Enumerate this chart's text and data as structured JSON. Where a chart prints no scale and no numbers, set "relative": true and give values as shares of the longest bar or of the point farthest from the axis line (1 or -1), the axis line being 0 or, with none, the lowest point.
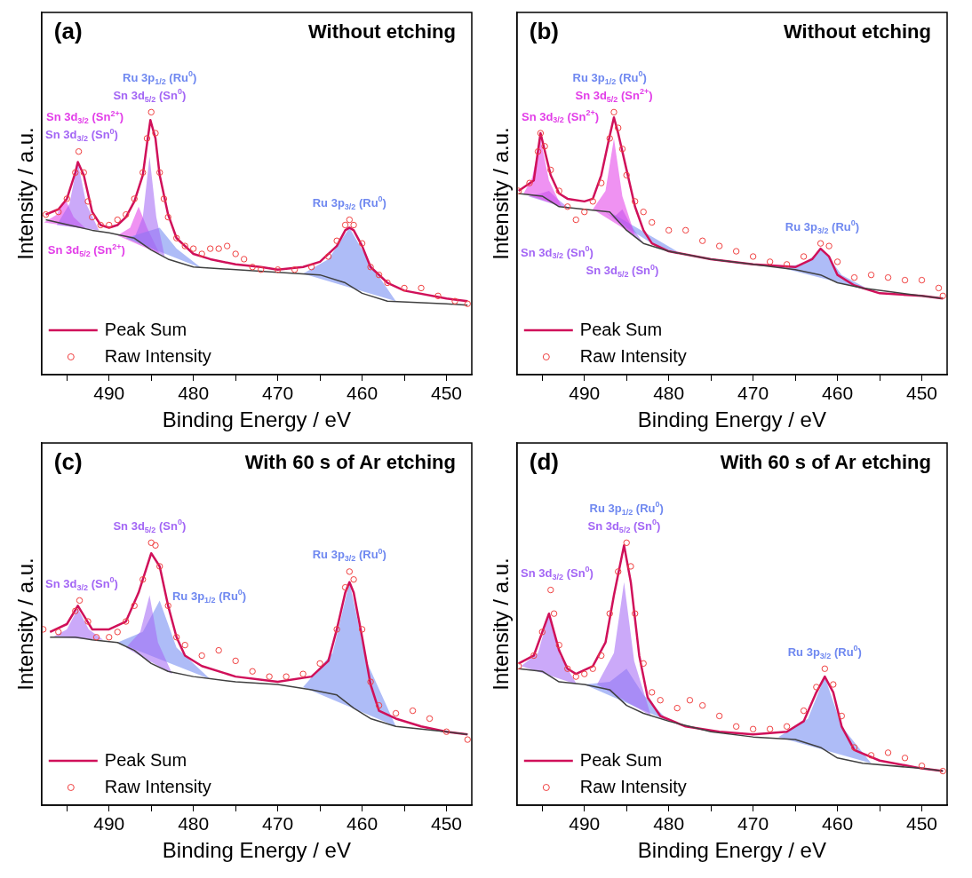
{
  "chart_data": [
    {
      "type": "line",
      "title": "Without etching",
      "xlabel": "Binding Energy / eV",
      "ylabel": "Intensity / a.u.",
      "relative": true,
      "legend": "bottom left",
      "grid": false,
      "xlim": [
        498,
        447
      ],
      "xticks": [
        {
          "value": 495,
          "label": null
        },
        490,
        {
          "value": 485,
          "label": null
        },
        480,
        {
          "value": 475,
          "label": null
        },
        470,
        {
          "value": 465,
          "label": null
        },
        460,
        {
          "value": 455,
          "label": null
        },
        450
      ],
      "annotations": [
        "(a)",
        "Sn 3d$_{5/2}$ (Sn$^{0}$)",
        "Sn 3d$_{3/2}$ (Sn$^{0}$)",
        "Ru 3p$_{1/2}$ (Ru$^{0}$)",
        "Ru 3p$_{3/2}$ (Ru$^{0}$)",
        "Sn 3d$_{3/2}$ (Sn$^{2+}$)",
        "Sn 3d$_{5/2}$ (Sn$^{2+}$)"
      ],
      "series": [
        {
          "type": "area",
          "color": "#a366f5",
          "x": [
            487,
            486,
            485.2,
            484.4,
            483.4
          ],
          "values": [
            0.52,
            0.6,
            0.83,
            0.6,
            0.45
          ]
        },
        {
          "type": "area",
          "color": "#a366f5",
          "x": [
            496.2,
            494.7,
            493.7,
            492.7,
            491.2
          ],
          "values": [
            0.57,
            0.65,
            0.81,
            0.65,
            0.55
          ]
        },
        {
          "type": "area",
          "color": "#6f88f0",
          "x": [
            488,
            486,
            484,
            482,
            479
          ],
          "values": [
            0.52,
            0.54,
            0.56,
            0.48,
            0.405
          ]
        },
        {
          "type": "area",
          "color": "#6f88f0",
          "x": [
            467,
            464,
            461.5,
            459,
            456
          ],
          "values": [
            0.385,
            0.44,
            0.56,
            0.42,
            0.28
          ]
        },
        {
          "type": "area",
          "color": "#e23ee8",
          "x": [
            497.7,
            496.2,
            495.2,
            494.2,
            492.7
          ],
          "values": [
            0.58,
            0.61,
            0.67,
            0.6,
            0.555
          ]
        },
        {
          "type": "area",
          "color": "#e23ee8",
          "x": [
            489,
            487.5,
            486.5,
            485.5,
            484
          ],
          "values": [
            0.53,
            0.56,
            0.64,
            0.56,
            0.46
          ]
        },
        {
          "color": "#404040",
          "x": [
            497.5,
            492,
            490,
            487,
            485,
            483,
            480,
            470,
            465,
            462,
            460,
            457,
            450,
            447.5
          ],
          "values": [
            0.59,
            0.55,
            0.54,
            0.52,
            0.475,
            0.44,
            0.41,
            0.39,
            0.38,
            0.35,
            0.31,
            0.28,
            0.27,
            0.265
          ]
        },
        {
          "name": "Peak Sum",
          "color": "#d0105a",
          "x": [
            497.5,
            496,
            495,
            494,
            493.7,
            493,
            492,
            491,
            490,
            489,
            488,
            487,
            486,
            485.5,
            485.1,
            484.5,
            484,
            483,
            482,
            480,
            478,
            475,
            472,
            470,
            467,
            465,
            463,
            462,
            461.5,
            461,
            460,
            459,
            457,
            455,
            450,
            447.5
          ],
          "values": [
            0.61,
            0.63,
            0.67,
            0.77,
            0.81,
            0.76,
            0.62,
            0.57,
            0.56,
            0.57,
            0.6,
            0.66,
            0.76,
            0.88,
            0.97,
            0.9,
            0.76,
            0.61,
            0.52,
            0.46,
            0.44,
            0.42,
            0.41,
            0.4,
            0.41,
            0.43,
            0.49,
            0.55,
            0.56,
            0.55,
            0.49,
            0.41,
            0.35,
            0.32,
            0.29,
            0.28
          ]
        },
        {
          "type": "scatter",
          "name": "Raw Intensity",
          "color": "#f04040",
          "marker": "circle",
          "x": [
            497.5,
            496,
            495,
            494,
            493.6,
            493,
            492.5,
            492,
            491,
            490,
            489,
            488,
            487,
            486,
            485.5,
            485,
            484.5,
            484,
            483.5,
            483,
            482,
            481,
            480,
            479,
            478,
            477,
            476,
            475,
            474,
            473,
            472,
            470,
            468,
            466,
            464,
            463,
            462,
            461.5,
            461,
            460,
            459,
            458,
            457,
            455,
            453,
            451,
            449,
            447.5
          ],
          "values": [
            0.61,
            0.62,
            0.67,
            0.77,
            0.85,
            0.77,
            0.66,
            0.6,
            0.57,
            0.57,
            0.59,
            0.61,
            0.67,
            0.77,
            0.9,
            1,
            0.92,
            0.77,
            0.67,
            0.6,
            0.52,
            0.49,
            0.48,
            0.46,
            0.48,
            0.48,
            0.49,
            0.46,
            0.44,
            0.41,
            0.4,
            0.4,
            0.4,
            0.41,
            0.45,
            0.51,
            0.57,
            0.59,
            0.57,
            0.5,
            0.41,
            0.38,
            0.35,
            0.33,
            0.33,
            0.3,
            0.28,
            0.27
          ]
        }
      ]
    },
    {
      "type": "line",
      "title": "Without etching",
      "xlabel": "Binding Energy / eV",
      "ylabel": "Intensity / a.u.",
      "relative": true,
      "legend": "bottom left",
      "grid": false,
      "xlim": [
        498,
        447
      ],
      "xticks": [
        {
          "value": 495,
          "label": null
        },
        490,
        {
          "value": 485,
          "label": null
        },
        480,
        {
          "value": 475,
          "label": null
        },
        470,
        {
          "value": 465,
          "label": null
        },
        460,
        {
          "value": 455,
          "label": null
        },
        450
      ],
      "annotations": [
        "(b)",
        "Sn 3d$_{3/2}$ (Sn$^{2+}$)",
        "Sn 3d$_{5/2}$ (Sn$^{2+}$)",
        "Ru 3p$_{1/2}$ (Ru$^{0}$)",
        "Ru 3p$_{3/2}$ (Ru$^{0}$)",
        "Sn 3d$_{3/2}$ (Sn$^{0}$)",
        "Sn 3d$_{5/2}$ (Sn$^{0}$)"
      ],
      "series": [
        {
          "type": "area",
          "color": "#e23ee8",
          "x": [
            497.2,
            496.2,
            495.2,
            494.2,
            492.7
          ],
          "values": [
            0.69,
            0.75,
            0.9,
            0.74,
            0.64
          ]
        },
        {
          "type": "area",
          "color": "#e23ee8",
          "x": [
            489,
            487.5,
            486.5,
            485.5,
            484
          ],
          "values": [
            0.63,
            0.7,
            0.9,
            0.68,
            0.53
          ]
        },
        {
          "type": "area",
          "color": "#6f88f0",
          "x": [
            487,
            485,
            483.5,
            481.5,
            478.5
          ],
          "values": [
            0.62,
            0.56,
            0.53,
            0.49,
            0.46
          ]
        },
        {
          "type": "area",
          "color": "#6f88f0",
          "x": [
            467,
            464,
            461.8,
            459.5,
            456
          ],
          "values": [
            0.41,
            0.42,
            0.48,
            0.38,
            0.32
          ]
        },
        {
          "type": "area",
          "color": "#a366f5",
          "x": [
            496.7,
            495.2,
            494.2,
            493.2,
            491.7
          ],
          "values": [
            0.68,
            0.69,
            0.7,
            0.67,
            0.63
          ]
        },
        {
          "type": "area",
          "color": "#a366f5",
          "x": [
            487.5,
            486.5,
            485.5,
            484.5,
            483
          ],
          "values": [
            0.62,
            0.6,
            0.63,
            0.57,
            0.5
          ]
        },
        {
          "color": "#404040",
          "x": [
            497.8,
            495,
            493,
            490,
            487,
            485,
            483,
            480,
            475,
            470,
            465,
            462,
            460,
            457,
            450,
            447.5
          ],
          "values": [
            0.69,
            0.68,
            0.64,
            0.63,
            0.62,
            0.55,
            0.5,
            0.47,
            0.44,
            0.42,
            0.4,
            0.38,
            0.35,
            0.33,
            0.3,
            0.29
          ]
        },
        {
          "name": "Peak Sum",
          "color": "#d0105a",
          "x": [
            497.8,
            496,
            495.2,
            494,
            493,
            492,
            490,
            489,
            488,
            487,
            486.5,
            486,
            485,
            484,
            483,
            482,
            480,
            475,
            470,
            465,
            463,
            462,
            461,
            460,
            458,
            455,
            450,
            447.5
          ],
          "values": [
            0.7,
            0.74,
            0.92,
            0.76,
            0.69,
            0.67,
            0.66,
            0.67,
            0.76,
            0.91,
            0.98,
            0.92,
            0.78,
            0.64,
            0.55,
            0.5,
            0.47,
            0.44,
            0.42,
            0.41,
            0.44,
            0.48,
            0.45,
            0.38,
            0.34,
            0.31,
            0.3,
            0.29
          ]
        },
        {
          "type": "scatter",
          "name": "Raw Intensity",
          "color": "#f04040",
          "marker": "circle",
          "x": [
            497.8,
            496.5,
            495.5,
            495.2,
            494.7,
            494,
            493,
            492,
            491,
            490,
            489,
            488,
            487,
            486.5,
            486,
            485.5,
            485,
            484,
            483,
            482,
            480,
            478,
            476,
            474,
            472,
            470,
            468,
            466,
            464,
            462,
            461,
            460,
            458,
            456,
            454,
            452,
            450,
            448,
            447.5
          ],
          "values": [
            0.7,
            0.73,
            0.85,
            0.92,
            0.87,
            0.78,
            0.7,
            0.64,
            0.59,
            0.62,
            0.66,
            0.73,
            0.9,
            1,
            0.94,
            0.86,
            0.76,
            0.66,
            0.62,
            0.58,
            0.55,
            0.55,
            0.51,
            0.49,
            0.47,
            0.45,
            0.43,
            0.42,
            0.45,
            0.5,
            0.49,
            0.43,
            0.37,
            0.38,
            0.37,
            0.36,
            0.36,
            0.33,
            0.3
          ]
        }
      ]
    },
    {
      "type": "line",
      "title": "With 60 s of Ar etching",
      "xlabel": "Binding Energy / eV",
      "ylabel": "Intensity / a.u.",
      "relative": true,
      "legend": "bottom left",
      "grid": false,
      "xlim": [
        498,
        447
      ],
      "xticks": [
        {
          "value": 495,
          "label": null
        },
        490,
        {
          "value": 485,
          "label": null
        },
        480,
        {
          "value": 475,
          "label": null
        },
        470,
        {
          "value": 465,
          "label": null
        },
        460,
        {
          "value": 455,
          "label": null
        },
        450
      ],
      "annotations": [
        "(c)",
        "Sn 3d$_{5/2}$ (Sn$^{0}$)",
        "Sn 3d$_{3/2}$ (Sn$^{0}$)",
        "Ru 3p$_{1/2}$ (Ru$^{0}$)",
        "Ru 3p$_{3/2}$ (Ru$^{0}$)"
      ],
      "series": [
        {
          "type": "area",
          "color": "#a366f5",
          "x": [
            488,
            486.3,
            485.2,
            484.2,
            482.5
          ],
          "values": [
            0.6,
            0.66,
            0.8,
            0.62,
            0.5
          ]
        },
        {
          "type": "area",
          "color": "#a366f5",
          "x": [
            496.7,
            495,
            493.7,
            492.4,
            490.7
          ],
          "values": [
            0.64,
            0.67,
            0.75,
            0.67,
            0.63
          ]
        },
        {
          "type": "area",
          "color": "#6f88f0",
          "x": [
            489,
            486,
            484,
            482,
            478
          ],
          "values": [
            0.62,
            0.66,
            0.78,
            0.6,
            0.48
          ]
        },
        {
          "type": "area",
          "color": "#6f88f0",
          "x": [
            467,
            463.5,
            461.5,
            459.5,
            456
          ],
          "values": [
            0.45,
            0.58,
            0.85,
            0.55,
            0.3
          ]
        },
        {
          "color": "#404040",
          "x": [
            497,
            494,
            492,
            489,
            487,
            485,
            483,
            480,
            475,
            470,
            466,
            463,
            461,
            459,
            456,
            450,
            447.5
          ],
          "values": [
            0.64,
            0.64,
            0.63,
            0.62,
            0.59,
            0.54,
            0.51,
            0.49,
            0.47,
            0.46,
            0.44,
            0.42,
            0.37,
            0.33,
            0.3,
            0.28,
            0.27
          ]
        },
        {
          "name": "Peak Sum",
          "color": "#d0105a",
          "x": [
            497,
            495,
            493.7,
            492,
            490,
            488,
            486.5,
            485,
            484,
            483,
            482,
            481,
            479,
            475,
            470,
            466,
            464,
            463,
            462,
            461.5,
            461,
            460,
            459,
            458,
            456,
            453,
            450,
            447.5
          ],
          "values": [
            0.66,
            0.69,
            0.76,
            0.67,
            0.67,
            0.7,
            0.81,
            0.96,
            0.91,
            0.76,
            0.64,
            0.57,
            0.53,
            0.49,
            0.47,
            0.49,
            0.55,
            0.67,
            0.81,
            0.85,
            0.81,
            0.64,
            0.46,
            0.36,
            0.33,
            0.3,
            0.28,
            0.27
          ]
        },
        {
          "type": "scatter",
          "name": "Raw Intensity",
          "color": "#f04040",
          "marker": "circle",
          "x": [
            497.8,
            496,
            494,
            493.5,
            492.5,
            491.5,
            490,
            489,
            488,
            487,
            486,
            485,
            484.5,
            484,
            483,
            482,
            481,
            479,
            477,
            475,
            473,
            471,
            469,
            467,
            465,
            463,
            462,
            461.5,
            461,
            460,
            459,
            458,
            456,
            454,
            452,
            450,
            447.5
          ],
          "values": [
            0.67,
            0.66,
            0.74,
            0.78,
            0.7,
            0.64,
            0.64,
            0.66,
            0.7,
            0.76,
            0.86,
            1,
            0.99,
            0.91,
            0.76,
            0.64,
            0.61,
            0.57,
            0.59,
            0.55,
            0.51,
            0.49,
            0.49,
            0.5,
            0.54,
            0.67,
            0.83,
            0.89,
            0.86,
            0.67,
            0.47,
            0.38,
            0.35,
            0.36,
            0.33,
            0.28,
            0.25
          ]
        }
      ]
    },
    {
      "type": "line",
      "title": "With 60 s of Ar etching",
      "xlabel": "Binding Energy / eV",
      "ylabel": "Intensity / a.u.",
      "relative": true,
      "legend": "bottom left",
      "grid": false,
      "xlim": [
        498,
        447
      ],
      "xticks": [
        {
          "value": 495,
          "label": null
        },
        490,
        {
          "value": 485,
          "label": null
        },
        480,
        {
          "value": 475,
          "label": null
        },
        470,
        {
          "value": 465,
          "label": null
        },
        460,
        {
          "value": 455,
          "label": null
        },
        450
      ],
      "annotations": [
        "(d)",
        "Sn 3d$_{5/2}$ (Sn$^{0}$)",
        "Sn 3d$_{3/2}$ (Sn$^{0}$)",
        "Ru 3p$_{1/2}$ (Ru$^{0}$)",
        "Ru 3p$_{3/2}$ (Ru$^{0}$)"
      ],
      "series": [
        {
          "type": "area",
          "color": "#a366f5",
          "x": [
            488.5,
            486.5,
            485.3,
            484.1,
            482.1
          ],
          "values": [
            0.46,
            0.58,
            0.85,
            0.55,
            0.34
          ]
        },
        {
          "type": "area",
          "color": "#a366f5",
          "x": [
            497.5,
            495.5,
            494.2,
            492.9,
            490.9
          ],
          "values": [
            0.53,
            0.58,
            0.73,
            0.57,
            0.46
          ]
        },
        {
          "type": "area",
          "color": "#6f88f0",
          "x": [
            490,
            487,
            485,
            483,
            480
          ],
          "values": [
            0.46,
            0.47,
            0.52,
            0.42,
            0.32
          ]
        },
        {
          "type": "area",
          "color": "#6f88f0",
          "x": [
            467,
            463.5,
            461.5,
            459.5,
            456
          ],
          "values": [
            0.26,
            0.33,
            0.49,
            0.3,
            0.16
          ]
        },
        {
          "color": "#404040",
          "x": [
            497.8,
            495,
            493,
            490,
            487,
            485,
            483,
            480,
            475,
            470,
            465,
            462,
            460,
            457,
            450,
            447.5
          ],
          "values": [
            0.52,
            0.51,
            0.47,
            0.46,
            0.44,
            0.38,
            0.35,
            0.32,
            0.28,
            0.26,
            0.25,
            0.22,
            0.18,
            0.16,
            0.14,
            0.13
          ]
        },
        {
          "name": "Peak Sum",
          "color": "#d0105a",
          "x": [
            497.8,
            496,
            494.2,
            493,
            492,
            491,
            489,
            487.5,
            486.5,
            485.3,
            484.5,
            483.5,
            482.5,
            481,
            478,
            474,
            470,
            466,
            464,
            462.5,
            461.5,
            460.5,
            459.5,
            458,
            455,
            450,
            447.5
          ],
          "values": [
            0.54,
            0.57,
            0.73,
            0.59,
            0.52,
            0.5,
            0.53,
            0.62,
            0.8,
            0.99,
            0.85,
            0.57,
            0.41,
            0.34,
            0.3,
            0.28,
            0.27,
            0.28,
            0.32,
            0.43,
            0.49,
            0.43,
            0.3,
            0.21,
            0.17,
            0.14,
            0.13
          ]
        },
        {
          "type": "scatter",
          "name": "Raw Intensity",
          "color": "#f04040",
          "marker": "circle",
          "x": [
            497.8,
            496,
            495,
            494,
            493.6,
            493,
            492,
            491,
            490,
            489,
            488,
            487,
            486,
            485,
            484.5,
            484,
            483,
            482,
            481,
            479,
            477.5,
            476,
            474,
            472,
            470,
            468,
            466,
            464,
            462.5,
            461.5,
            460.5,
            459.5,
            458,
            456,
            454,
            452,
            450,
            447.5
          ],
          "values": [
            0.53,
            0.57,
            0.66,
            0.82,
            0.73,
            0.61,
            0.52,
            0.49,
            0.5,
            0.52,
            0.57,
            0.73,
            0.89,
            1,
            0.91,
            0.73,
            0.54,
            0.43,
            0.4,
            0.37,
            0.4,
            0.38,
            0.34,
            0.3,
            0.29,
            0.29,
            0.3,
            0.36,
            0.45,
            0.52,
            0.46,
            0.34,
            0.22,
            0.19,
            0.2,
            0.18,
            0.15,
            0.13
          ]
        }
      ]
    }
  ]
}
